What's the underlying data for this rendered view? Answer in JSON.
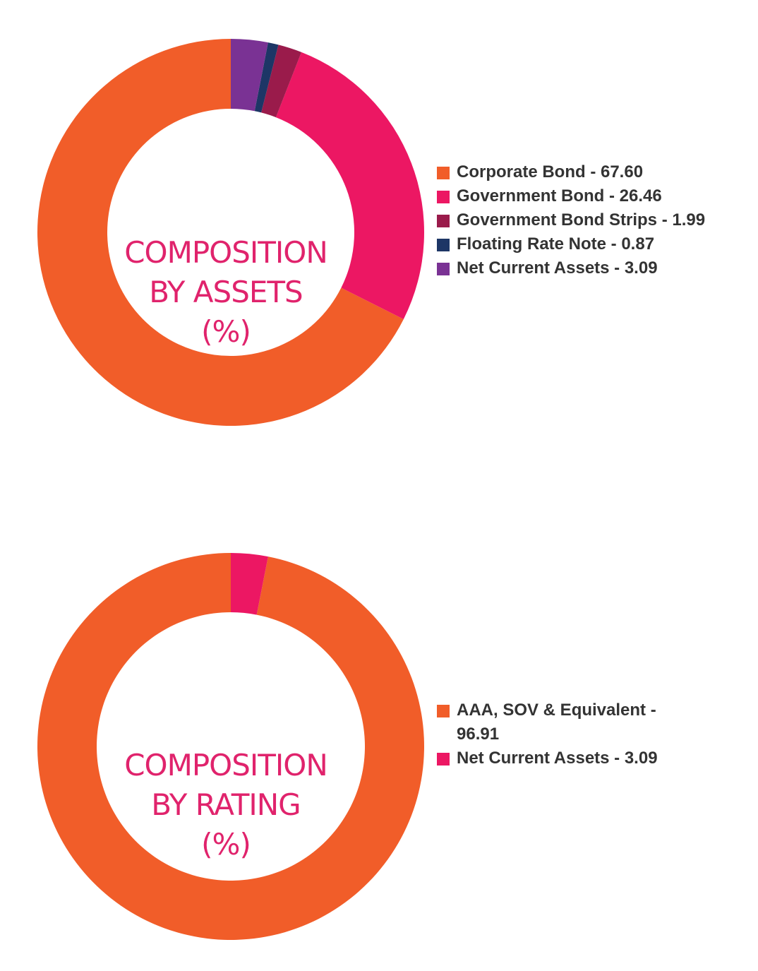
{
  "chart_data": [
    {
      "type": "donut",
      "title_lines": [
        "COMPOSITION",
        "BY ASSETS",
        "(%)"
      ],
      "title_color": "#e0236c",
      "categories": [
        "Corporate Bond",
        "Government Bond",
        "Government Bond Strips",
        "Floating Rate Note",
        "Net Current Assets"
      ],
      "values": [
        67.6,
        26.46,
        1.99,
        0.87,
        3.09
      ],
      "colors": [
        "#f15d29",
        "#ec1763",
        "#9a1b4b",
        "#1d3666",
        "#7a3294"
      ],
      "legend_labels": [
        "Corporate Bond - 67.60",
        "Government Bond - 26.46",
        "Government Bond Strips - 1.99",
        "Floating Rate Note - 0.87",
        "Net Current Assets - 3.09"
      ],
      "legend_position": "right"
    },
    {
      "type": "donut",
      "title_lines": [
        "COMPOSITION",
        "BY RATING",
        "(%)"
      ],
      "title_color": "#e0236c",
      "categories": [
        "AAA, SOV & Equivalent",
        "Net Current Assets"
      ],
      "values": [
        96.91,
        3.09
      ],
      "colors": [
        "#f15d29",
        "#ec1763"
      ],
      "legend_labels": [
        "AAA, SOV & Equivalent - 96.91",
        "Net Current Assets - 3.09"
      ],
      "legend_position": "right"
    }
  ]
}
